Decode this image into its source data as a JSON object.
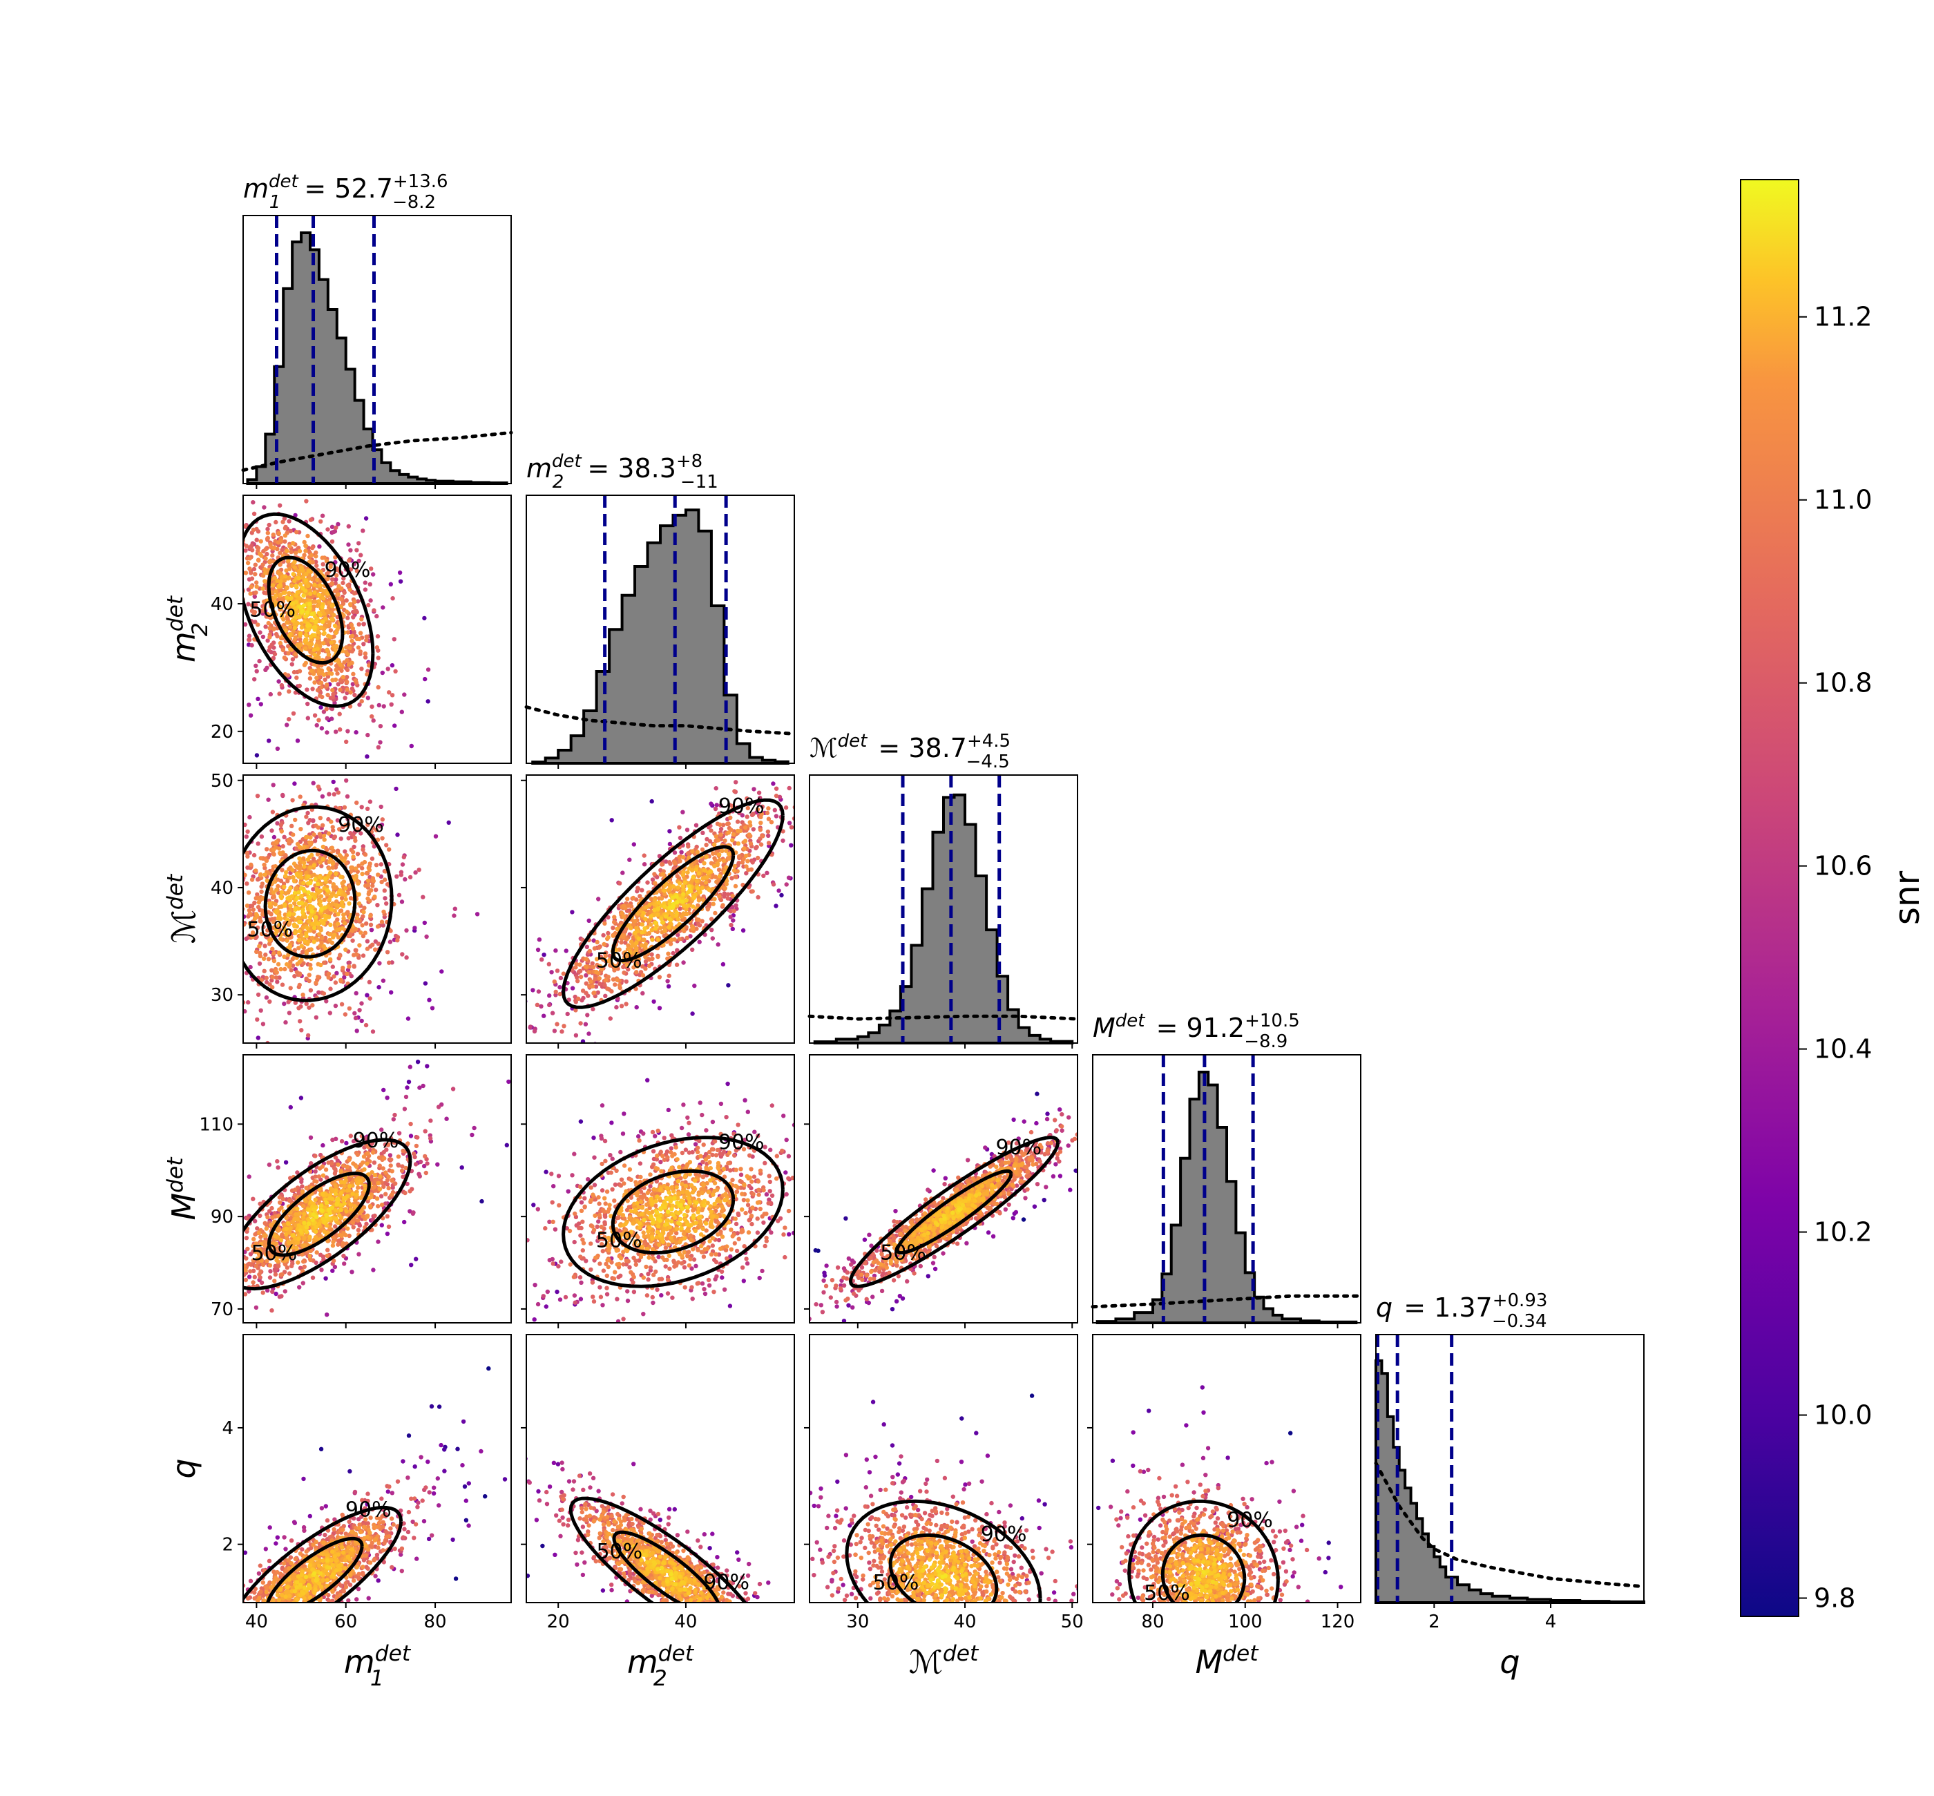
{
  "chart_data": {
    "type": "corner",
    "parameters": [
      {
        "key": "m1",
        "label": "m_1^{det}",
        "base": "m",
        "sub": "1",
        "sup": "det",
        "range": [
          37,
          97
        ],
        "ticks": [
          40,
          60,
          80
        ],
        "title": {
          "lhs_base": "m",
          "lhs_sub": "1",
          "lhs_sup": "det",
          "median": "52.7",
          "plus": "+13.6",
          "minus": "−8.2"
        },
        "median_value": 52.7,
        "plus_value": 13.6,
        "minus_value": 8.2
      },
      {
        "key": "m2",
        "label": "m_2^{det}",
        "base": "m",
        "sub": "2",
        "sup": "det",
        "range": [
          15,
          57
        ],
        "ticks": [
          20,
          40
        ],
        "title": {
          "lhs_base": "m",
          "lhs_sub": "2",
          "lhs_sup": "det",
          "median": "38.3",
          "plus": "+8",
          "minus": "−11"
        },
        "median_value": 38.3,
        "plus_value": 8,
        "minus_value": 11
      },
      {
        "key": "mc",
        "label": "ℳ^{det}",
        "base": "ℳ",
        "sub": "",
        "sup": "det",
        "range": [
          25.5,
          50.5
        ],
        "ticks": [
          30,
          40,
          50
        ],
        "title": {
          "lhs_base": "ℳ",
          "lhs_sub": "",
          "lhs_sup": "det",
          "median": "38.7",
          "plus": "+4.5",
          "minus": "−4.5"
        },
        "median_value": 38.7,
        "plus_value": 4.5,
        "minus_value": 4.5
      },
      {
        "key": "mt",
        "label": "M^{det}",
        "base": "M",
        "sub": "",
        "sup": "det",
        "range": [
          67,
          125
        ],
        "ticks": [
          80,
          100,
          120
        ],
        "title": {
          "lhs_base": "M",
          "lhs_sub": "",
          "lhs_sup": "det",
          "median": "91.2",
          "plus": "+10.5",
          "minus": "−8.9"
        },
        "median_value": 91.2,
        "plus_value": 10.5,
        "minus_value": 8.9
      },
      {
        "key": "q",
        "label": "q",
        "base": "q",
        "sub": "",
        "sup": "",
        "range": [
          1.0,
          5.6
        ],
        "ticks": [
          2,
          4
        ],
        "title": {
          "lhs_base": "q",
          "lhs_sub": "",
          "lhs_sup": "",
          "median": "1.37",
          "plus": "+0.93",
          "minus": "−0.34"
        },
        "median_value": 1.37,
        "plus_value": 0.93,
        "minus_value": 0.34
      }
    ],
    "row_ticks": {
      "m2": [
        20,
        40
      ],
      "mc": [
        30,
        40,
        50
      ],
      "mt": [
        70,
        90,
        110
      ],
      "q": [
        2,
        4
      ]
    },
    "histograms": {
      "m1": {
        "x": [
          38,
          40,
          42,
          44,
          46,
          48,
          50,
          52,
          54,
          56,
          58,
          60,
          62,
          64,
          66,
          68,
          70,
          72,
          74,
          76,
          78,
          80,
          84,
          88,
          92,
          96
        ],
        "y": [
          0.0,
          0.03,
          0.1,
          0.28,
          0.62,
          0.88,
          0.98,
          0.95,
          0.85,
          0.72,
          0.62,
          0.5,
          0.38,
          0.26,
          0.16,
          0.1,
          0.06,
          0.04,
          0.03,
          0.02,
          0.015,
          0.01,
          0.008,
          0.005,
          0.003,
          0.002
        ]
      },
      "m2": {
        "x": [
          16,
          18,
          20,
          22,
          24,
          26,
          28,
          30,
          32,
          34,
          36,
          38,
          40,
          42,
          44,
          46,
          48,
          50,
          52,
          54,
          56
        ],
        "y": [
          0.0,
          0.01,
          0.03,
          0.07,
          0.14,
          0.26,
          0.44,
          0.58,
          0.7,
          0.8,
          0.88,
          0.93,
          0.96,
          0.97,
          0.8,
          0.4,
          0.12,
          0.03,
          0.015,
          0.008,
          0.004
        ]
      },
      "mc": {
        "x": [
          26,
          28,
          30,
          31,
          32,
          33,
          34,
          35,
          36,
          37,
          38,
          39,
          40,
          41,
          42,
          43,
          44,
          45,
          46,
          47,
          48,
          50
        ],
        "y": [
          0.0,
          0.01,
          0.02,
          0.03,
          0.05,
          0.09,
          0.16,
          0.28,
          0.48,
          0.72,
          0.92,
          0.99,
          0.94,
          0.76,
          0.54,
          0.34,
          0.18,
          0.08,
          0.04,
          0.02,
          0.01,
          0.003
        ]
      },
      "mt": {
        "x": [
          68,
          72,
          76,
          80,
          82,
          84,
          86,
          88,
          90,
          92,
          94,
          96,
          98,
          100,
          102,
          104,
          106,
          108,
          112,
          116,
          124
        ],
        "y": [
          0.0,
          0.01,
          0.02,
          0.06,
          0.12,
          0.26,
          0.5,
          0.78,
          0.96,
          0.99,
          0.86,
          0.66,
          0.44,
          0.26,
          0.13,
          0.07,
          0.04,
          0.02,
          0.01,
          0.005,
          0.002
        ]
      },
      "q": {
        "x": [
          1.0,
          1.1,
          1.2,
          1.3,
          1.4,
          1.5,
          1.6,
          1.7,
          1.8,
          1.9,
          2.0,
          2.1,
          2.2,
          2.4,
          2.6,
          2.8,
          3.0,
          3.3,
          3.6,
          4.0,
          4.5,
          5.0,
          5.6
        ],
        "y": [
          0.9,
          1.0,
          0.8,
          0.66,
          0.56,
          0.48,
          0.42,
          0.36,
          0.3,
          0.24,
          0.2,
          0.16,
          0.12,
          0.08,
          0.06,
          0.04,
          0.03,
          0.02,
          0.015,
          0.01,
          0.006,
          0.004,
          0.002
        ]
      }
    },
    "prior_curves": {
      "m1": {
        "x": [
          37,
          45,
          55,
          65,
          75,
          85,
          97
        ],
        "y": [
          0.05,
          0.08,
          0.11,
          0.14,
          0.16,
          0.17,
          0.19
        ]
      },
      "m2": {
        "x": [
          15,
          20,
          25,
          30,
          35,
          40,
          45,
          50,
          57
        ],
        "y": [
          0.21,
          0.18,
          0.16,
          0.15,
          0.14,
          0.14,
          0.13,
          0.12,
          0.11
        ]
      },
      "mc": {
        "x": [
          25.5,
          30,
          35,
          40,
          45,
          50.5
        ],
        "y": [
          0.1,
          0.09,
          0.095,
          0.1,
          0.1,
          0.09
        ]
      },
      "mt": {
        "x": [
          67,
          80,
          90,
          100,
          110,
          125
        ],
        "y": [
          0.06,
          0.07,
          0.08,
          0.09,
          0.1,
          0.1
        ]
      },
      "q": {
        "x": [
          1.0,
          1.2,
          1.4,
          1.6,
          1.8,
          2.0,
          2.4,
          3.0,
          3.5,
          4.0,
          4.5,
          5.0,
          5.6
        ],
        "y": [
          0.52,
          0.44,
          0.36,
          0.3,
          0.24,
          0.2,
          0.16,
          0.13,
          0.11,
          0.09,
          0.08,
          0.07,
          0.06
        ]
      }
    },
    "pairs": [
      {
        "x": "m1",
        "y": "m2",
        "center": [
          51,
          39
        ],
        "sd": [
          7,
          7
        ],
        "corr": -0.45,
        "contours": [
          "90%",
          "50%"
        ]
      },
      {
        "x": "m1",
        "y": "mc",
        "center": [
          52,
          38.5
        ],
        "sd": [
          8.5,
          4.2
        ],
        "corr": 0.05,
        "contours": [
          "90%",
          "50%"
        ]
      },
      {
        "x": "m2",
        "y": "mc",
        "center": [
          38,
          38.5
        ],
        "sd": [
          8,
          4.5
        ],
        "corr": 0.85,
        "contours": [
          "50%",
          "90%"
        ]
      },
      {
        "x": "m1",
        "y": "mt",
        "center": [
          54,
          90.5
        ],
        "sd": [
          9.5,
          7.5
        ],
        "corr": 0.72,
        "contours": [
          "90%",
          "50%"
        ]
      },
      {
        "x": "m2",
        "y": "mt",
        "center": [
          38,
          91
        ],
        "sd": [
          8,
          7.5
        ],
        "corr": 0.3,
        "contours": [
          "90%",
          "50%"
        ]
      },
      {
        "x": "mc",
        "y": "mt",
        "center": [
          39,
          91
        ],
        "sd": [
          4.5,
          7.5
        ],
        "corr": 0.93,
        "contours": [
          "50%",
          "90%"
        ]
      },
      {
        "x": "m1",
        "y": "q",
        "center": [
          53,
          1.45
        ],
        "sd": [
          9,
          0.55
        ],
        "corr": 0.8,
        "contours": [
          "50%",
          "90%"
        ]
      },
      {
        "x": "m2",
        "y": "q",
        "center": [
          37,
          1.5
        ],
        "sd": [
          7,
          0.6
        ],
        "corr": -0.85,
        "contours": [
          "90%",
          "50%"
        ]
      },
      {
        "x": "mc",
        "y": "q",
        "center": [
          38,
          1.45
        ],
        "sd": [
          4.2,
          0.6
        ],
        "corr": -0.3,
        "contours": [
          "90%",
          "50%"
        ]
      },
      {
        "x": "mt",
        "y": "q",
        "center": [
          91,
          1.45
        ],
        "sd": [
          7.5,
          0.6
        ],
        "corr": -0.05,
        "contours": [
          "90%",
          "50%"
        ]
      }
    ],
    "colorbar": {
      "label": "snr",
      "range": [
        9.78,
        11.35
      ],
      "ticks": [
        "9.8",
        "10.0",
        "10.2",
        "10.4",
        "10.6",
        "10.8",
        "11.0",
        "11.2"
      ],
      "tick_values": [
        9.8,
        10.0,
        10.2,
        10.4,
        10.6,
        10.8,
        11.0,
        11.2
      ],
      "colormap": "plasma"
    },
    "colors": {
      "hist_fill": "#808080",
      "hist_edge": "#000000",
      "quantile_line": "#00008b",
      "contour": "#000000",
      "prior": "#000000"
    }
  }
}
